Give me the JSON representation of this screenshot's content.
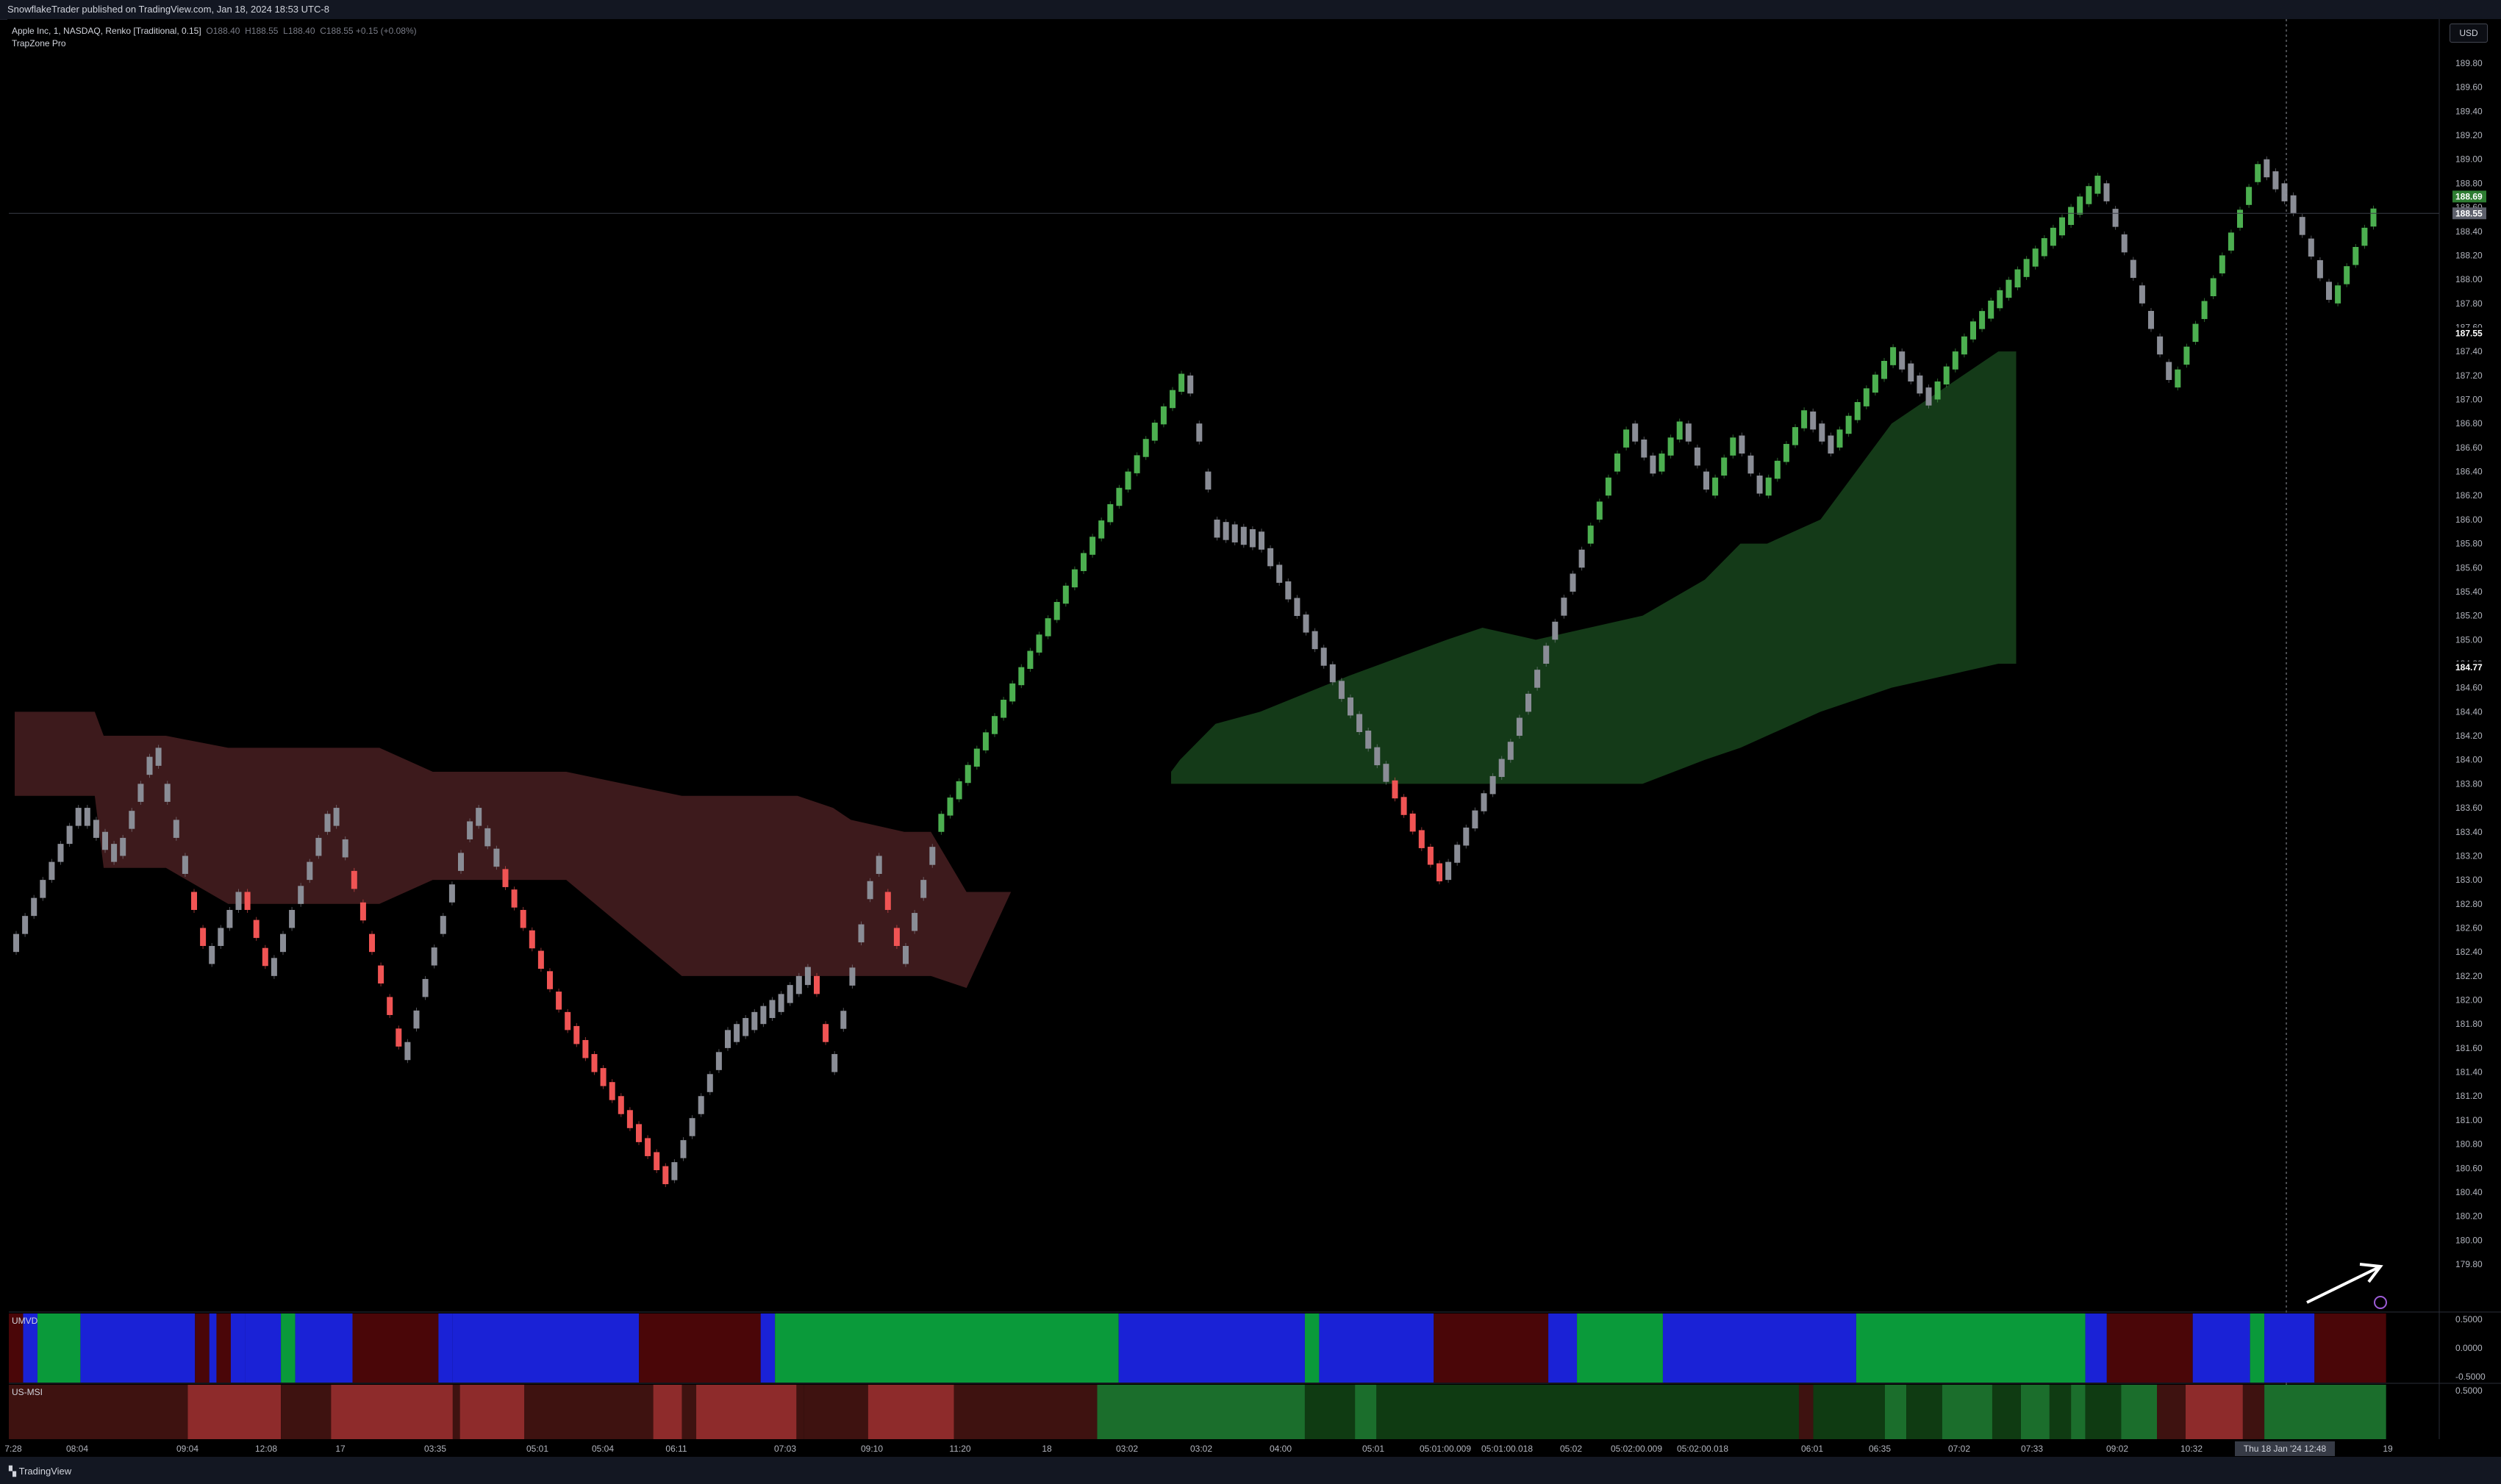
{
  "header": {
    "publisher": "SnowflakeTrader published on TradingView.com, Jan 18, 2024 18:53 UTC-8"
  },
  "legend": {
    "symbol": "Apple Inc, 1, NASDAQ, Renko [Traditional, 0.15]",
    "o_label": "O",
    "o": "188.40",
    "h_label": "H",
    "h": "188.55",
    "l_label": "L",
    "l": "188.40",
    "c_label": "C",
    "c": "188.55 +0.15 (+0.08%)",
    "indicator": "TrapZone Pro"
  },
  "currency": "USD",
  "footer": {
    "brand": "TradingView"
  },
  "colors": {
    "bull": "#4caf50",
    "bear": "#f05454",
    "neutral": "#8a8d96",
    "bull_zone": "#143a18",
    "bear_zone": "#3d1a1c",
    "osc_green": "#0a9a3a",
    "osc_blue": "#1a22d6",
    "osc_maroon": "#4a0608",
    "msi_red": "#8e2b2b",
    "msi_maroon": "#3e1210",
    "msi_green": "#1b6e2c",
    "msi_dkgreen": "#0f3b12"
  },
  "chart_data": {
    "type": "renko",
    "brick_size": 0.15,
    "ylim": [
      179.8,
      189.9
    ],
    "y_ticks": [
      "189.80",
      "189.60",
      "189.40",
      "189.20",
      "189.00",
      "188.80",
      "188.60",
      "188.40",
      "188.20",
      "188.00",
      "187.80",
      "187.60",
      "187.40",
      "187.20",
      "187.00",
      "186.80",
      "186.60",
      "186.40",
      "186.20",
      "186.00",
      "185.80",
      "185.60",
      "185.40",
      "185.20",
      "185.00",
      "184.80",
      "184.60",
      "184.40",
      "184.20",
      "184.00",
      "183.80",
      "183.60",
      "183.40",
      "183.20",
      "183.00",
      "182.80",
      "182.60",
      "182.40",
      "182.20",
      "182.00",
      "181.80",
      "181.60",
      "181.40",
      "181.20",
      "181.00",
      "180.80",
      "180.60",
      "180.40",
      "180.20",
      "180.00",
      "179.80"
    ],
    "price_badges": [
      {
        "label": "188.69",
        "value": 188.69,
        "color": "#2e7d32"
      },
      {
        "label": "188.55",
        "value": 188.55,
        "color": "#5d606b"
      },
      {
        "label": "187.55",
        "value": 187.55,
        "color": "#000000"
      },
      {
        "label": "184.77",
        "value": 184.77,
        "color": "#000000"
      }
    ],
    "x_ticks": [
      "7:28",
      "08:04",
      "09:04",
      "12:08",
      "17",
      "03:35",
      "05:01",
      "05:04",
      "06:11",
      "07:03",
      "09:10",
      "11:20",
      "18",
      "03:02",
      "03:02",
      "04:00",
      "05:01",
      "05:01:00.009",
      "05:01:00.018",
      "05:02",
      "05:02:00.009",
      "05:02:00.018",
      "06:01",
      "06:35",
      "07:02",
      "07:33",
      "09:02",
      "10:32",
      "19"
    ],
    "crosshair_label": "Thu 18 Jan '24   12:48",
    "waypoints": [
      [
        0,
        182.4
      ],
      [
        8,
        183.6
      ],
      [
        12,
        183.2
      ],
      [
        16,
        184.1
      ],
      [
        22,
        182.3
      ],
      [
        26,
        182.9
      ],
      [
        29,
        182.2
      ],
      [
        36,
        183.6
      ],
      [
        44,
        181.5
      ],
      [
        52,
        183.6
      ],
      [
        62,
        181.9
      ],
      [
        74,
        180.5
      ],
      [
        80,
        181.6
      ],
      [
        86,
        181.9
      ],
      [
        90,
        182.2
      ],
      [
        92,
        181.4
      ],
      [
        97,
        183.2
      ],
      [
        100,
        182.3
      ],
      [
        104,
        183.4
      ],
      [
        132,
        187.2
      ],
      [
        135,
        186.0
      ],
      [
        140,
        185.9
      ],
      [
        161,
        183.0
      ],
      [
        168,
        184.0
      ],
      [
        182,
        186.8
      ],
      [
        185,
        186.4
      ],
      [
        188,
        186.8
      ],
      [
        191,
        186.2
      ],
      [
        194,
        186.7
      ],
      [
        197,
        186.2
      ],
      [
        202,
        186.9
      ],
      [
        205,
        186.6
      ],
      [
        212,
        187.4
      ],
      [
        216,
        187.0
      ],
      [
        220,
        187.5
      ],
      [
        235,
        188.8
      ],
      [
        243,
        187.1
      ],
      [
        253,
        189.0
      ],
      [
        256,
        188.7
      ],
      [
        261,
        187.8
      ],
      [
        266,
        188.6
      ]
    ],
    "bear_zone": {
      "x": [
        0,
        9,
        10,
        17,
        24,
        41,
        47,
        62,
        75,
        88,
        92,
        94,
        100,
        103,
        107,
        112
      ],
      "upper": [
        184.4,
        184.4,
        184.2,
        184.2,
        184.1,
        184.1,
        183.9,
        183.9,
        183.7,
        183.7,
        183.6,
        183.5,
        183.4,
        183.4,
        182.9,
        182.9
      ],
      "lower": [
        183.7,
        183.7,
        183.1,
        183.1,
        182.8,
        182.8,
        183.0,
        183.0,
        182.2,
        182.2,
        182.2,
        182.2,
        182.2,
        182.2,
        182.1,
        182.9
      ]
    },
    "bull_zone": {
      "x": [
        130,
        131,
        135,
        140,
        150,
        161,
        165,
        171,
        183,
        190,
        194,
        197,
        203,
        211,
        223,
        225
      ],
      "upper": [
        183.9,
        184.0,
        184.3,
        184.4,
        184.7,
        185.0,
        185.1,
        185.0,
        185.2,
        185.5,
        185.8,
        185.8,
        186.0,
        186.8,
        187.4,
        187.4
      ],
      "lower": [
        183.8,
        183.8,
        183.8,
        183.8,
        183.8,
        183.8,
        183.8,
        183.8,
        183.8,
        184.0,
        184.1,
        184.2,
        184.4,
        184.6,
        184.8,
        184.8
      ]
    },
    "indicators": [
      {
        "name": "UMVD",
        "y_ticks": [
          "0.5000",
          "0.0000",
          "-0.5000"
        ],
        "segments": [
          [
            0,
            2,
            "osc_maroon"
          ],
          [
            2,
            4,
            "osc_blue"
          ],
          [
            4,
            10,
            "osc_green"
          ],
          [
            10,
            26,
            "osc_blue"
          ],
          [
            26,
            28,
            "osc_maroon"
          ],
          [
            28,
            29,
            "osc_blue"
          ],
          [
            29,
            31,
            "osc_maroon"
          ],
          [
            31,
            33,
            "osc_blue"
          ],
          [
            33,
            38,
            "osc_blue"
          ],
          [
            38,
            40,
            "osc_green"
          ],
          [
            40,
            48,
            "osc_blue"
          ],
          [
            48,
            60,
            "osc_maroon"
          ],
          [
            60,
            62,
            "osc_blue"
          ],
          [
            62,
            88,
            "osc_blue"
          ],
          [
            88,
            105,
            "osc_maroon"
          ],
          [
            105,
            107,
            "osc_blue"
          ],
          [
            107,
            155,
            "osc_green"
          ],
          [
            155,
            181,
            "osc_blue"
          ],
          [
            181,
            183,
            "osc_green"
          ],
          [
            183,
            199,
            "osc_blue"
          ],
          [
            199,
            215,
            "osc_maroon"
          ],
          [
            215,
            219,
            "osc_blue"
          ],
          [
            219,
            231,
            "osc_green"
          ],
          [
            231,
            258,
            "osc_blue"
          ],
          [
            258,
            290,
            "osc_green"
          ],
          [
            290,
            293,
            "osc_blue"
          ],
          [
            293,
            305,
            "osc_maroon"
          ],
          [
            305,
            313,
            "osc_blue"
          ],
          [
            313,
            315,
            "osc_green"
          ],
          [
            315,
            322,
            "osc_blue"
          ],
          [
            322,
            332,
            "osc_maroon"
          ]
        ]
      },
      {
        "name": "US-MSI",
        "y_ticks": [
          "0.5000"
        ],
        "segments": [
          [
            0,
            25,
            "msi_maroon"
          ],
          [
            25,
            38,
            "msi_red"
          ],
          [
            38,
            45,
            "msi_maroon"
          ],
          [
            45,
            62,
            "msi_red"
          ],
          [
            62,
            63,
            "msi_maroon"
          ],
          [
            63,
            72,
            "msi_red"
          ],
          [
            72,
            90,
            "msi_maroon"
          ],
          [
            90,
            94,
            "msi_red"
          ],
          [
            94,
            96,
            "msi_maroon"
          ],
          [
            96,
            110,
            "msi_red"
          ],
          [
            110,
            111,
            "msi_maroon"
          ],
          [
            111,
            120,
            "msi_maroon"
          ],
          [
            120,
            132,
            "msi_red"
          ],
          [
            132,
            152,
            "msi_maroon"
          ],
          [
            152,
            181,
            "msi_green"
          ],
          [
            181,
            188,
            "msi_dkgreen"
          ],
          [
            188,
            191,
            "msi_green"
          ],
          [
            191,
            250,
            "msi_dkgreen"
          ],
          [
            250,
            252,
            "msi_maroon"
          ],
          [
            252,
            262,
            "msi_dkgreen"
          ],
          [
            262,
            265,
            "msi_green"
          ],
          [
            265,
            270,
            "msi_dkgreen"
          ],
          [
            270,
            277,
            "msi_green"
          ],
          [
            277,
            281,
            "msi_dkgreen"
          ],
          [
            281,
            285,
            "msi_green"
          ],
          [
            285,
            288,
            "msi_dkgreen"
          ],
          [
            288,
            290,
            "msi_green"
          ],
          [
            290,
            295,
            "msi_dkgreen"
          ],
          [
            295,
            300,
            "msi_green"
          ],
          [
            300,
            304,
            "msi_maroon"
          ],
          [
            304,
            312,
            "msi_red"
          ],
          [
            312,
            315,
            "msi_maroon"
          ],
          [
            315,
            332,
            "msi_green"
          ]
        ]
      }
    ]
  }
}
